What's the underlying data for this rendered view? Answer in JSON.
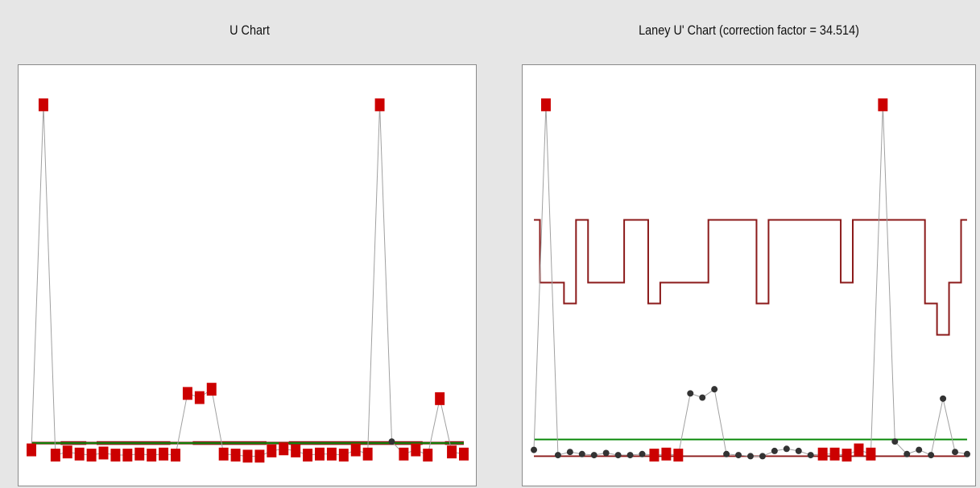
{
  "chart_data": [
    {
      "type": "line",
      "title": "U Chart",
      "x": [
        1,
        2,
        3,
        4,
        5,
        6,
        7,
        8,
        9,
        10,
        11,
        12,
        13,
        14,
        15,
        16,
        17,
        18,
        19,
        20,
        21,
        22,
        23,
        24,
        25,
        26,
        27,
        28,
        29,
        30,
        31,
        32,
        33,
        34,
        35,
        36,
        37
      ],
      "values": [
        2.0,
        35.0,
        1.5,
        1.8,
        1.6,
        1.5,
        1.7,
        1.5,
        1.5,
        1.6,
        1.5,
        1.6,
        1.5,
        7.4,
        7.0,
        7.8,
        1.6,
        1.5,
        1.4,
        1.4,
        1.9,
        2.1,
        1.9,
        1.5,
        1.6,
        1.6,
        1.5,
        2.0,
        1.6,
        35.0,
        2.8,
        1.6,
        2.0,
        1.5,
        6.9,
        1.8,
        1.6
      ],
      "out_of_control": [
        true,
        true,
        true,
        true,
        true,
        true,
        true,
        true,
        true,
        true,
        true,
        true,
        true,
        true,
        true,
        true,
        true,
        true,
        true,
        true,
        true,
        true,
        true,
        true,
        true,
        true,
        true,
        true,
        true,
        true,
        false,
        true,
        true,
        true,
        true,
        true,
        true
      ],
      "center_line": 2.65,
      "ucl": [
        2.7,
        2.7,
        2.7,
        2.75,
        2.75,
        2.7,
        2.75,
        2.75,
        2.75,
        2.75,
        2.75,
        2.75,
        2.7,
        2.7,
        2.75,
        2.75,
        2.75,
        2.75,
        2.75,
        2.75,
        2.7,
        2.7,
        2.75,
        2.75,
        2.75,
        2.75,
        2.75,
        2.75,
        2.75,
        2.75,
        2.75,
        2.75,
        2.75,
        2.7,
        2.7,
        2.75,
        2.75
      ],
      "lcl": [
        2.6,
        2.6,
        2.6,
        2.55,
        2.55,
        2.6,
        2.55,
        2.55,
        2.55,
        2.55,
        2.55,
        2.55,
        2.6,
        2.6,
        2.55,
        2.55,
        2.55,
        2.55,
        2.55,
        2.55,
        2.6,
        2.6,
        2.55,
        2.55,
        2.55,
        2.55,
        2.55,
        2.55,
        2.55,
        2.55,
        2.55,
        2.55,
        2.55,
        2.6,
        2.6,
        2.55,
        2.55
      ],
      "ylim": [
        0.5,
        36.5
      ],
      "grid": false,
      "colors": {
        "points": "#cc0000",
        "ok_point": "#333333",
        "line": "#a0a0a0",
        "center": "#0a8a0a",
        "limits": "#8b1a1a"
      }
    },
    {
      "type": "line",
      "title": "Laney U' Chart (correction factor = 34.514)",
      "x": [
        1,
        2,
        3,
        4,
        5,
        6,
        7,
        8,
        9,
        10,
        11,
        12,
        13,
        14,
        15,
        16,
        17,
        18,
        19,
        20,
        21,
        22,
        23,
        24,
        25,
        26,
        27,
        28,
        29,
        30,
        31,
        32,
        33,
        34,
        35,
        36,
        37
      ],
      "values": [
        2.0,
        35.0,
        1.5,
        1.8,
        1.6,
        1.5,
        1.7,
        1.5,
        1.5,
        1.6,
        1.5,
        1.6,
        1.5,
        7.4,
        7.0,
        7.8,
        1.6,
        1.5,
        1.4,
        1.4,
        1.9,
        2.1,
        1.9,
        1.5,
        1.6,
        1.6,
        1.5,
        2.0,
        1.6,
        35.0,
        2.8,
        1.6,
        2.0,
        1.5,
        6.9,
        1.8,
        1.6
      ],
      "out_of_control": [
        false,
        true,
        false,
        false,
        false,
        false,
        false,
        false,
        false,
        false,
        true,
        true,
        true,
        false,
        false,
        false,
        false,
        false,
        false,
        false,
        false,
        false,
        false,
        false,
        true,
        true,
        true,
        true,
        true,
        true,
        false,
        false,
        false,
        false,
        false,
        false,
        false
      ],
      "center_line": 3.0,
      "ucl": [
        24.0,
        18.0,
        18.0,
        16.0,
        24.0,
        18.0,
        18.0,
        18.0,
        24.0,
        24.0,
        16.0,
        18.0,
        18.0,
        18.0,
        18.0,
        24.0,
        24.0,
        24.0,
        24.0,
        16.0,
        24.0,
        24.0,
        24.0,
        24.0,
        24.0,
        24.0,
        18.0,
        24.0,
        24.0,
        24.0,
        24.0,
        24.0,
        24.0,
        16.0,
        13.0,
        18.0,
        24.0
      ],
      "lcl": [
        1.4,
        1.4,
        1.4,
        1.4,
        1.4,
        1.4,
        1.4,
        1.4,
        1.4,
        1.4,
        1.4,
        1.4,
        1.4,
        1.4,
        1.4,
        1.4,
        1.4,
        1.4,
        1.4,
        1.4,
        1.4,
        1.4,
        1.4,
        1.4,
        1.4,
        1.4,
        1.4,
        1.4,
        1.4,
        1.4,
        1.4,
        1.4,
        1.4,
        1.4,
        1.4,
        1.4,
        1.4
      ],
      "ylim": [
        0.5,
        36.5
      ],
      "grid": false,
      "colors": {
        "points": "#cc0000",
        "ok_point": "#333333",
        "line": "#a0a0a0",
        "center": "#0a8a0a",
        "limits": "#8b1a1a"
      }
    }
  ]
}
